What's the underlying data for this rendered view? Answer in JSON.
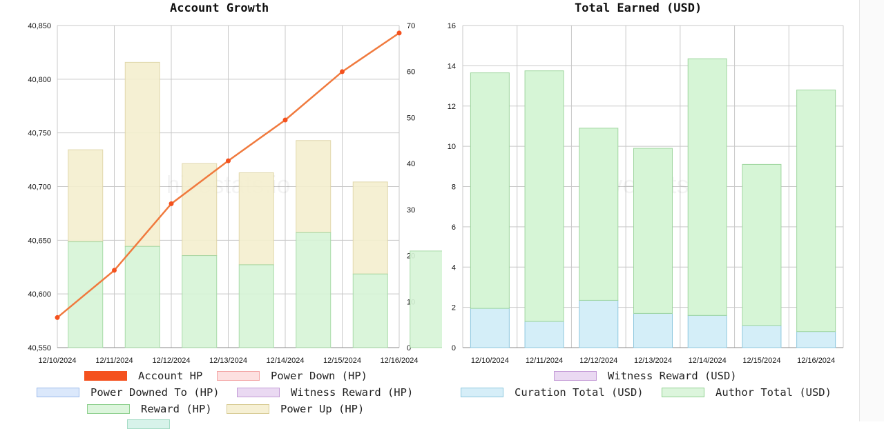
{
  "watermark": "hivestats.io",
  "chart_data": [
    {
      "type": "bar",
      "title": "Account Growth",
      "categories": [
        "12/10/2024",
        "12/11/2024",
        "12/12/2024",
        "12/13/2024",
        "12/14/2024",
        "12/15/2024",
        "12/16/2024"
      ],
      "y_left": {
        "ticks": [
          "40,550",
          "40,600",
          "40,650",
          "40,700",
          "40,750",
          "40,800",
          "40,850"
        ],
        "ylim": [
          40550,
          40850
        ]
      },
      "y_right": {
        "ticks": [
          "0",
          "10",
          "20",
          "30",
          "40",
          "50",
          "60",
          "70"
        ],
        "ylim": [
          0,
          70
        ]
      },
      "grid": true,
      "series": [
        {
          "name": "Account HP",
          "type": "line",
          "axis": "left",
          "color": "#f07a3e",
          "values": [
            40578,
            40622,
            40684,
            40724,
            40762,
            40807,
            40843
          ]
        },
        {
          "name": "Reward (HP)",
          "type": "bar",
          "axis": "right",
          "color": "#d6f5d6",
          "border": "#9fd69f",
          "values": [
            23,
            22,
            20,
            18,
            25,
            16,
            21
          ]
        },
        {
          "name": "Power Up (HP)",
          "type": "bar",
          "axis": "right",
          "color": "#f5efcf",
          "border": "#ddd3a3",
          "values": [
            20,
            40,
            20,
            20,
            20,
            20,
            0
          ]
        }
      ],
      "legend": [
        {
          "label": "Account HP",
          "fill": "#f4511e",
          "border": "#f4511e"
        },
        {
          "label": "Power Down (HP)",
          "fill": "#fde0e0",
          "border": "#f3a3a3"
        },
        {
          "label": "Power Downed To (HP)",
          "fill": "#dbe8fb",
          "border": "#9ab9ea"
        },
        {
          "label": "Witness Reward (HP)",
          "fill": "#ead9f2",
          "border": "#c39ad6"
        },
        {
          "label": "Reward (HP)",
          "fill": "#dcf5dc",
          "border": "#8fd08f"
        },
        {
          "label": "Power Up (HP)",
          "fill": "#f6f0d4",
          "border": "#d8cc95"
        },
        {
          "label": "",
          "fill": "#d7f3ea",
          "border": "#a6dcc6"
        }
      ]
    },
    {
      "type": "bar",
      "stacked": true,
      "title": "Total Earned (USD)",
      "categories": [
        "12/10/2024",
        "12/11/2024",
        "12/12/2024",
        "12/13/2024",
        "12/14/2024",
        "12/15/2024",
        "12/16/2024"
      ],
      "y": {
        "ticks": [
          "0",
          "2",
          "4",
          "6",
          "8",
          "10",
          "12",
          "14",
          "16"
        ],
        "ylim": [
          0,
          16
        ]
      },
      "grid": true,
      "series": [
        {
          "name": "Curation Total (USD)",
          "color": "#d4eef8",
          "border": "#8cc7de",
          "values": [
            1.95,
            1.3,
            2.35,
            1.7,
            1.6,
            1.1,
            0.8
          ]
        },
        {
          "name": "Author Total (USD)",
          "color": "#d6f5d6",
          "border": "#9fd69f",
          "values": [
            11.7,
            12.45,
            8.55,
            8.2,
            12.75,
            8.0,
            12.0
          ]
        }
      ],
      "legend": [
        {
          "label": "Witness Reward (USD)",
          "fill": "#ead9f2",
          "border": "#c39ad6"
        },
        {
          "label": "Curation Total (USD)",
          "fill": "#d6eef8",
          "border": "#8cc7de"
        },
        {
          "label": "Author Total (USD)",
          "fill": "#dcf5dc",
          "border": "#8fd08f"
        }
      ]
    }
  ]
}
